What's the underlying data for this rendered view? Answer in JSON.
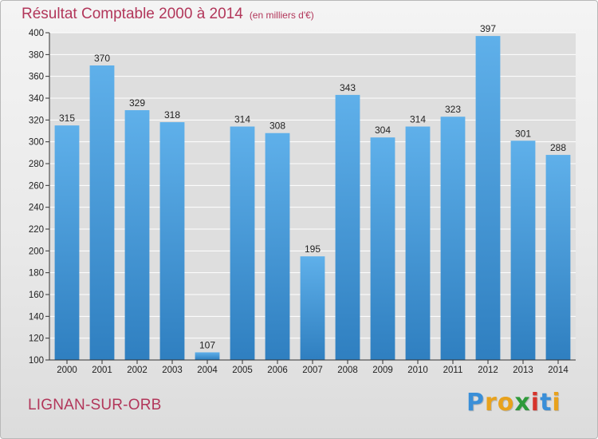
{
  "title": "Résultat Comptable 2000 à 2014",
  "subtitle": "(en milliers d'€)",
  "commune": "LIGNAN-SUR-ORB",
  "brand": {
    "text": "Proxiti",
    "letters": [
      "P",
      "r",
      "o",
      "x",
      "i",
      "t",
      "i"
    ],
    "colors": [
      "#3a8fd8",
      "#e8a21c",
      "#e8a21c",
      "#2e9a3a",
      "#d6342c",
      "#3a8fd8",
      "#e8a21c"
    ]
  },
  "colors": {
    "title": "#b2365a",
    "bar_top": "#5fb0ea",
    "bar_bottom": "#2f7fc0",
    "grid": "#ffffff"
  },
  "chart_data": {
    "type": "bar",
    "categories": [
      "2000",
      "2001",
      "2002",
      "2003",
      "2004",
      "2005",
      "2006",
      "2007",
      "2008",
      "2009",
      "2010",
      "2011",
      "2012",
      "2013",
      "2014"
    ],
    "values": [
      315,
      370,
      329,
      318,
      107,
      314,
      308,
      195,
      343,
      304,
      314,
      323,
      397,
      301,
      288
    ],
    "ylim": [
      100,
      400
    ],
    "yticks": [
      100,
      120,
      140,
      160,
      180,
      200,
      220,
      240,
      260,
      280,
      300,
      320,
      340,
      360,
      380,
      400
    ],
    "grid": true,
    "legend": "none"
  }
}
